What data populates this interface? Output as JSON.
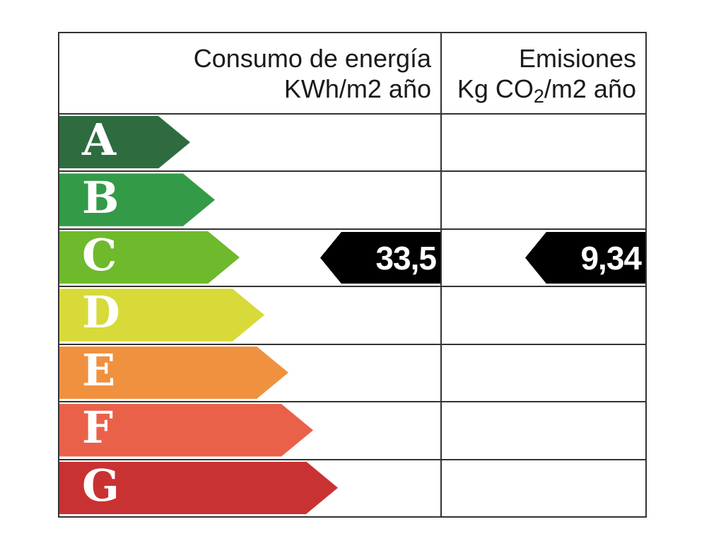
{
  "header": {
    "consumo": {
      "line1": "Consumo de energía",
      "line2": "KWh/m2 año"
    },
    "emisiones": {
      "line1": "Emisiones",
      "line2_prefix": "Kg CO",
      "line2_sub": "2",
      "line2_suffix": "/m2 año"
    }
  },
  "ratings": [
    {
      "letter": "A",
      "color": "#2e6c3f"
    },
    {
      "letter": "B",
      "color": "#339a47"
    },
    {
      "letter": "C",
      "color": "#6fb92d"
    },
    {
      "letter": "D",
      "color": "#d8da39"
    },
    {
      "letter": "E",
      "color": "#f0913f"
    },
    {
      "letter": "F",
      "color": "#ea614a"
    },
    {
      "letter": "G",
      "color": "#c93233"
    }
  ],
  "result": {
    "rating_letter": "C",
    "consumo_value": "33,5",
    "emisiones_value": "9,34",
    "arrow_color": "#000000",
    "text_color": "#ffffff"
  },
  "colors": {
    "border": "#333333",
    "header_text": "#1a1a1a",
    "background": "#ffffff"
  },
  "chart_data": {
    "type": "table",
    "columns": [
      "Consumo de energía KWh/m2 año",
      "Emisiones Kg CO2/m2 año"
    ],
    "categories": [
      "A",
      "B",
      "C",
      "D",
      "E",
      "F",
      "G"
    ],
    "series": [
      {
        "name": "Consumo de energía (KWh/m2 año)",
        "rating": "C",
        "value": 33.5
      },
      {
        "name": "Emisiones (Kg CO2/m2 año)",
        "rating": "C",
        "value": 9.34
      }
    ],
    "legend_position": "none",
    "grid": true
  }
}
